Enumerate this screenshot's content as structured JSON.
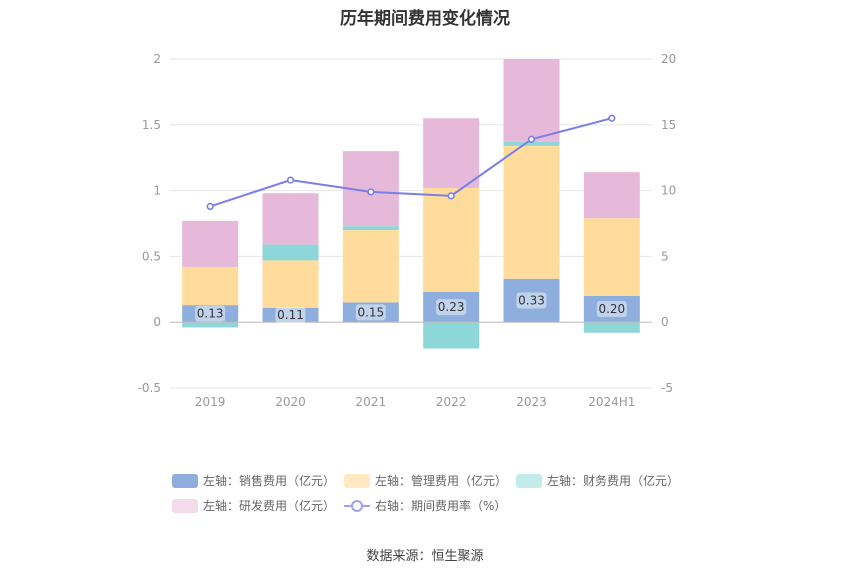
{
  "chart_data": {
    "type": "bar",
    "title": "历年期间费用变化情况",
    "categories": [
      "2019",
      "2020",
      "2021",
      "2022",
      "2023",
      "2024H1"
    ],
    "left_axis": {
      "ylim": [
        -0.5,
        2
      ],
      "ticks": [
        "-0.5",
        "0",
        "0.5",
        "1",
        "1.5",
        "2"
      ]
    },
    "right_axis": {
      "ylim": [
        -5,
        20
      ],
      "ticks": [
        "-5",
        "0",
        "5",
        "10",
        "15",
        "20"
      ]
    },
    "series": [
      {
        "name": "左轴：销售费用（亿元）",
        "axis": "left",
        "stack": "a",
        "color": "#8eafdd",
        "values": [
          0.13,
          0.11,
          0.15,
          0.23,
          0.33,
          0.2
        ],
        "labels": [
          "0.13",
          "0.11",
          "0.15",
          "0.23",
          "0.33",
          "0.20"
        ]
      },
      {
        "name": "左轴：管理费用（亿元）",
        "axis": "left",
        "stack": "a",
        "color": "#ffdb9c",
        "values": [
          0.29,
          0.36,
          0.55,
          0.79,
          1.01,
          0.59
        ]
      },
      {
        "name": "左轴：财务费用（亿元）",
        "axis": "left",
        "stack": "a",
        "color": "#8dd7d9",
        "values": [
          -0.04,
          0.12,
          0.03,
          -0.2,
          0.03,
          -0.08
        ]
      },
      {
        "name": "左轴：研发费用（亿元）",
        "axis": "left",
        "stack": "a",
        "color": "#e6b9da",
        "values": [
          0.35,
          0.39,
          0.57,
          0.53,
          0.63,
          0.35
        ]
      },
      {
        "name": "右轴：期间费用率（%）",
        "axis": "right",
        "type": "line",
        "color": "#7a7fe6",
        "values": [
          8.8,
          10.8,
          9.9,
          9.6,
          13.9,
          15.5
        ]
      }
    ],
    "grid": true,
    "legend_position": "bottom"
  },
  "source": "数据来源：恒生聚源"
}
